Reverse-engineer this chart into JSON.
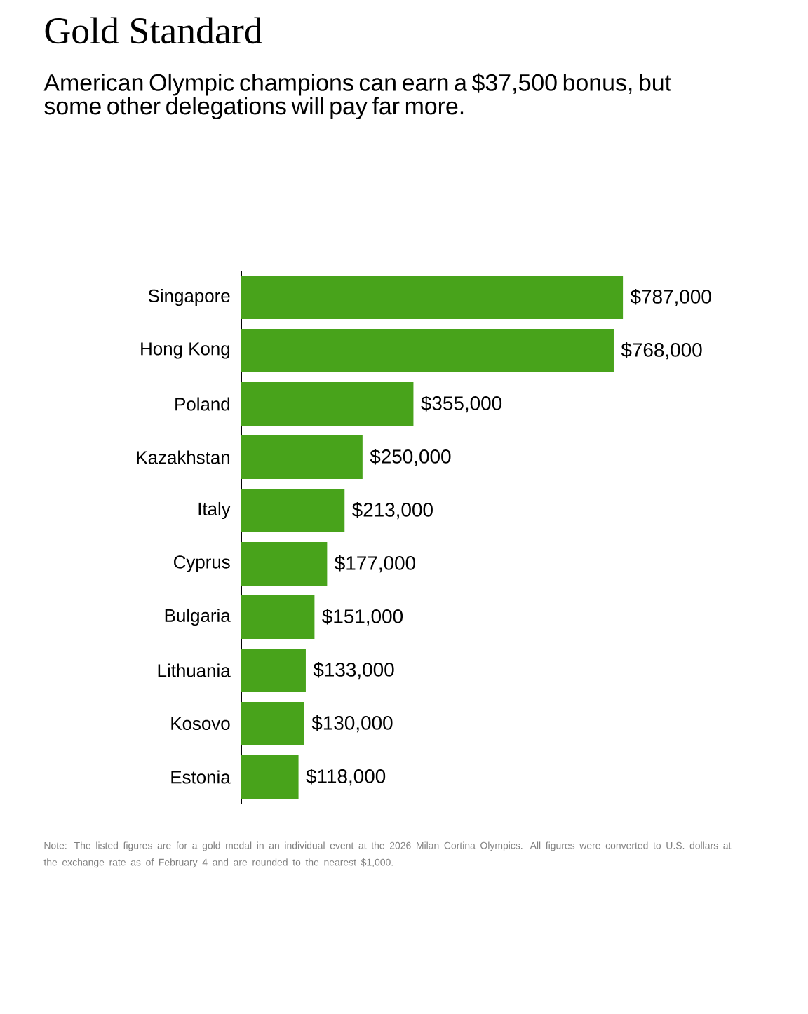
{
  "chart_data": {
    "type": "bar",
    "orientation": "horizontal",
    "title": "Gold Standard",
    "subtitle": "American Olympic champions can earn a $37,500 bonus, but some other delegations will pay far more.",
    "categories": [
      "Singapore",
      "Hong Kong",
      "Poland",
      "Kazakhstan",
      "Italy",
      "Cyprus",
      "Bulgaria",
      "Lithuania",
      "Kosovo",
      "Estonia"
    ],
    "values": [
      787000,
      768000,
      355000,
      250000,
      213000,
      177000,
      151000,
      133000,
      130000,
      118000
    ],
    "value_labels": [
      "$787,000",
      "$768,000",
      "$355,000",
      "$250,000",
      "$213,000",
      "$177,000",
      "$151,000",
      "$133,000",
      "$130,000",
      "$118,000"
    ],
    "color": "#48a31b",
    "tick_labels": "y",
    "annotations": [
      "Note: The listed figures are for a gold medal in an individual event at the 2026 Milan Cortina Olympics. All figures were converted to U.S. dollars at the exchange rate as of February 4 and are rounded to the nearest $1,000."
    ]
  }
}
